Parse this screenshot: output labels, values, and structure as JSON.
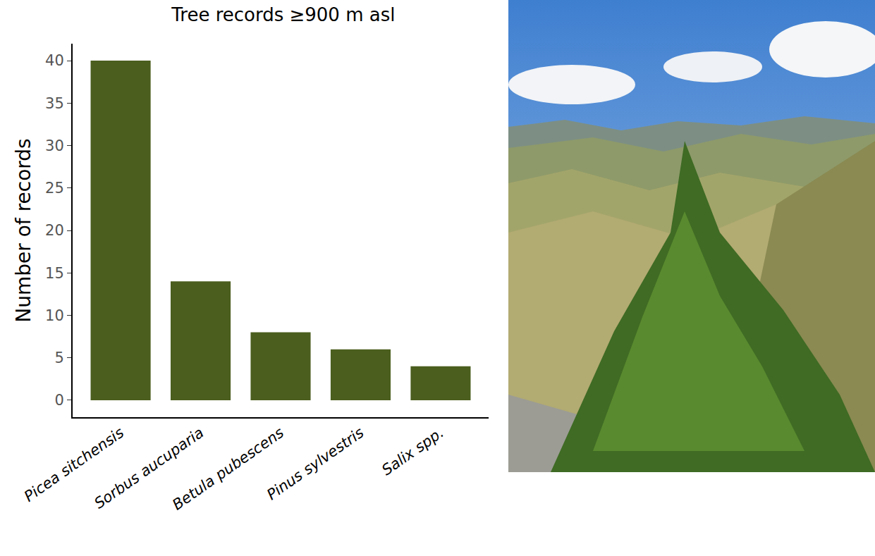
{
  "chart_data": {
    "type": "bar",
    "title": "Tree records ≥900 m asl",
    "y_label": "Number of records",
    "categories": [
      "Picea sitchensis",
      "Sorbus aucuparia",
      "Betula pubescens",
      "Pinus sylvestris",
      "Salix spp."
    ],
    "values": [
      40,
      14,
      8,
      6,
      4
    ],
    "color": "#4b5e1e",
    "ylim": [
      -2,
      42
    ],
    "yticks": [
      0,
      5,
      10,
      15,
      20,
      25,
      30,
      35,
      40
    ],
    "grid": false
  }
}
